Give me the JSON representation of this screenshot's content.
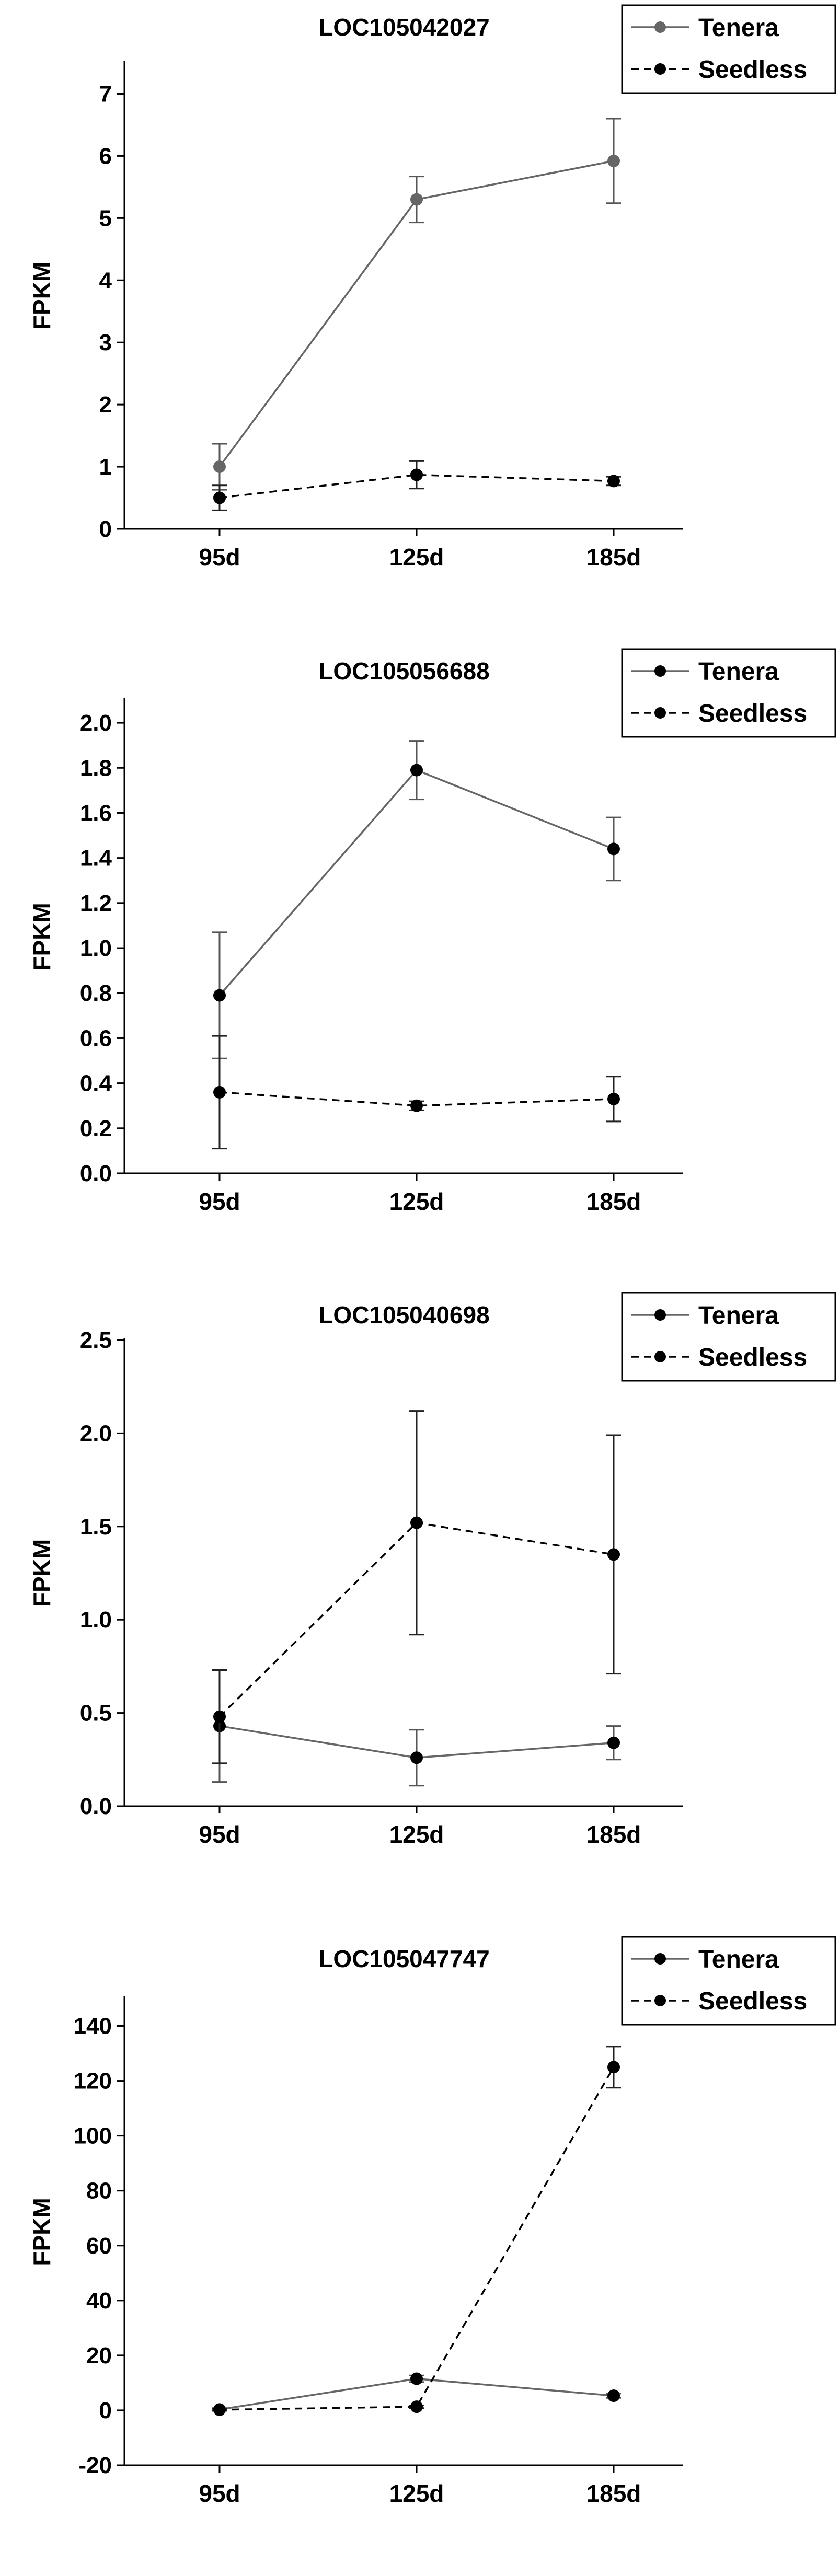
{
  "colors": {
    "axis": "#000000",
    "tenera": "#666666",
    "seedless": "#000000",
    "background": "#ffffff"
  },
  "chart_data": [
    {
      "type": "line",
      "title": "LOC105042027",
      "xlabel": "",
      "ylabel": "FPKM",
      "categories": [
        "95d",
        "125d",
        "185d"
      ],
      "ylim": [
        0,
        7.5
      ],
      "yticks": [
        0,
        1,
        2,
        3,
        4,
        5,
        6,
        7
      ],
      "ytick_labels": [
        "0",
        "1",
        "2",
        "3",
        "4",
        "5",
        "6",
        "7"
      ],
      "legend": "top-right",
      "series": [
        {
          "name": "Tenera",
          "style": "solid",
          "values": [
            1.0,
            5.3,
            5.92
          ],
          "errors": [
            0.37,
            0.37,
            0.68
          ]
        },
        {
          "name": "Seedless",
          "style": "dashed",
          "values": [
            0.5,
            0.87,
            0.77
          ],
          "errors": [
            0.2,
            0.22,
            0.07
          ]
        }
      ]
    },
    {
      "type": "line",
      "title": "LOC105056688",
      "xlabel": "",
      "ylabel": "FPKM",
      "categories": [
        "95d",
        "125d",
        "185d"
      ],
      "ylim": [
        0,
        2.1
      ],
      "yticks": [
        0,
        0.2,
        0.4,
        0.6,
        0.8,
        1.0,
        1.2,
        1.4,
        1.6,
        1.8,
        2.0
      ],
      "ytick_labels": [
        "0.0",
        "0.2",
        "0.4",
        "0.6",
        "0.8",
        "1.0",
        "1.2",
        "1.4",
        "1.6",
        "1.8",
        "2.0"
      ],
      "legend": "top-right",
      "series": [
        {
          "name": "Tenera",
          "style": "solid",
          "values": [
            0.79,
            1.79,
            1.44
          ],
          "errors": [
            0.28,
            0.13,
            0.14
          ]
        },
        {
          "name": "Seedless",
          "style": "dashed",
          "values": [
            0.36,
            0.3,
            0.33
          ],
          "errors": [
            0.25,
            0.02,
            0.1
          ]
        }
      ]
    },
    {
      "type": "line",
      "title": "LOC105040698",
      "xlabel": "",
      "ylabel": "FPKM",
      "categories": [
        "95d",
        "125d",
        "185d"
      ],
      "ylim": [
        0,
        2.5
      ],
      "yticks": [
        0,
        0.5,
        1.0,
        1.5,
        2.0,
        2.5
      ],
      "ytick_labels": [
        "0.0",
        "0.5",
        "1.0",
        "1.5",
        "2.0",
        "2.5"
      ],
      "legend": "top-right",
      "series": [
        {
          "name": "Tenera",
          "style": "solid",
          "values": [
            0.43,
            0.26,
            0.34
          ],
          "errors": [
            0.3,
            0.15,
            0.09
          ]
        },
        {
          "name": "Seedless",
          "style": "dashed",
          "values": [
            0.48,
            1.52,
            1.35
          ],
          "errors": [
            0.25,
            0.6,
            0.64
          ]
        }
      ]
    },
    {
      "type": "line",
      "title": "LOC105047747",
      "xlabel": "",
      "ylabel": "FPKM",
      "categories": [
        "95d",
        "125d",
        "185d"
      ],
      "ylim": [
        -20,
        150
      ],
      "yticks": [
        -20,
        0,
        20,
        40,
        60,
        80,
        100,
        120,
        140
      ],
      "ytick_labels": [
        "-20",
        "0",
        "20",
        "40",
        "60",
        "80",
        "100",
        "120",
        "140"
      ],
      "legend": "top-right",
      "series": [
        {
          "name": "Tenera",
          "style": "solid",
          "values": [
            0.3,
            11.5,
            5.3
          ],
          "errors": [
            0.5,
            1.2,
            0.8
          ]
        },
        {
          "name": "Seedless",
          "style": "dashed",
          "values": [
            0.2,
            1.3,
            125.0
          ],
          "errors": [
            0.3,
            0.5,
            7.5
          ]
        }
      ]
    }
  ]
}
